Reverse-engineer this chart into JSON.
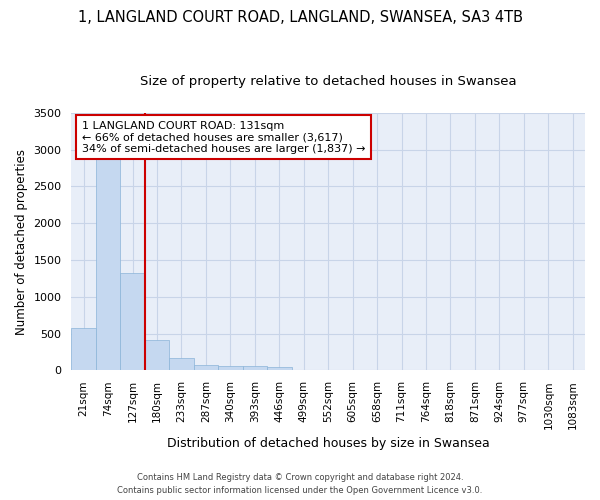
{
  "title": "1, LANGLAND COURT ROAD, LANGLAND, SWANSEA, SA3 4TB",
  "subtitle": "Size of property relative to detached houses in Swansea",
  "xlabel": "Distribution of detached houses by size in Swansea",
  "ylabel": "Number of detached properties",
  "categories": [
    "21sqm",
    "74sqm",
    "127sqm",
    "180sqm",
    "233sqm",
    "287sqm",
    "340sqm",
    "393sqm",
    "446sqm",
    "499sqm",
    "552sqm",
    "605sqm",
    "658sqm",
    "711sqm",
    "764sqm",
    "818sqm",
    "871sqm",
    "924sqm",
    "977sqm",
    "1030sqm",
    "1083sqm"
  ],
  "bar_heights": [
    580,
    2920,
    1320,
    415,
    170,
    70,
    55,
    55,
    50,
    0,
    0,
    0,
    0,
    0,
    0,
    0,
    0,
    0,
    0,
    0,
    0
  ],
  "bar_color": "#c5d8f0",
  "bar_edge_color": "#8ab4d8",
  "grid_color": "#c8d4e8",
  "background_color": "#e8eef8",
  "property_line_color": "#cc0000",
  "property_line_index": 2,
  "annotation_text": "1 LANGLAND COURT ROAD: 131sqm\n← 66% of detached houses are smaller (3,617)\n34% of semi-detached houses are larger (1,837) →",
  "annotation_box_color": "#cc0000",
  "title_fontsize": 10.5,
  "subtitle_fontsize": 9.5,
  "xlabel_fontsize": 9,
  "ylabel_fontsize": 8.5,
  "tick_fontsize": 7.5,
  "footnote_line1": "Contains HM Land Registry data © Crown copyright and database right 2024.",
  "footnote_line2": "Contains public sector information licensed under the Open Government Licence v3.0.",
  "ylim": [
    0,
    3500
  ]
}
